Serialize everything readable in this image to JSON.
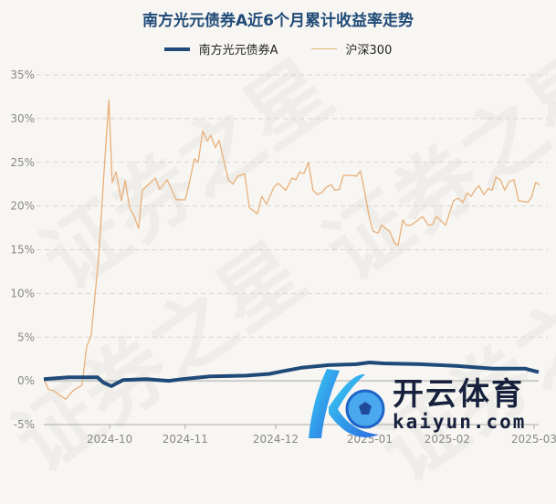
{
  "chart_data": {
    "type": "line",
    "title": "南方光元债券A近6个月累计收益率走势",
    "legend_position": "top",
    "grid": true,
    "y_unit": "%",
    "ylim": [
      -5,
      35
    ],
    "yticks": [
      "35%",
      "30%",
      "25%",
      "20%",
      "15%",
      "10%",
      "5%",
      "0%",
      "-5%"
    ],
    "ytick_values": [
      35,
      30,
      25,
      20,
      15,
      10,
      5,
      0,
      -5
    ],
    "xlim": [
      0,
      118
    ],
    "xticks": [
      {
        "label": "2024-10",
        "at": 15.7
      },
      {
        "label": "2024-11",
        "at": 33.7
      },
      {
        "label": "2024-12",
        "at": 55.3
      },
      {
        "label": "2025-01",
        "at": 77.7
      },
      {
        "label": "2025-02",
        "at": 96.2
      },
      {
        "label": "2025-03",
        "at": 116.9
      }
    ],
    "series": [
      {
        "name": "南方光元债券A",
        "color": "#1f4a78",
        "points": [
          [
            0,
            0.2
          ],
          [
            5.9,
            0.4
          ],
          [
            11.3,
            0.4
          ],
          [
            12.8,
            0.4
          ],
          [
            14.2,
            -0.2
          ],
          [
            16.1,
            -0.6
          ],
          [
            18.9,
            0.1
          ],
          [
            24.4,
            0.2
          ],
          [
            29.8,
            0
          ],
          [
            33.1,
            0.2
          ],
          [
            39.6,
            0.5
          ],
          [
            48.3,
            0.6
          ],
          [
            53.8,
            0.8
          ],
          [
            57,
            1.1
          ],
          [
            61.4,
            1.5
          ],
          [
            67.9,
            1.8
          ],
          [
            74.5,
            1.9
          ],
          [
            77.7,
            2.1
          ],
          [
            81,
            2.0
          ],
          [
            89.7,
            1.9
          ],
          [
            98.4,
            1.7
          ],
          [
            107.1,
            1.4
          ],
          [
            114.7,
            1.4
          ],
          [
            118,
            1.0
          ]
        ]
      },
      {
        "name": "沪深300",
        "color": "#e8b07a",
        "points": [
          [
            0,
            0.2
          ],
          [
            1.1,
            -1.0
          ],
          [
            2.2,
            -1.1
          ],
          [
            5.2,
            -2.1
          ],
          [
            7,
            -1.1
          ],
          [
            9.1,
            -0.5
          ],
          [
            10.2,
            3.9
          ],
          [
            11.3,
            5.2
          ],
          [
            13.1,
            14.3
          ],
          [
            14.2,
            22.7
          ],
          [
            15.5,
            32.1
          ],
          [
            16.3,
            22.7
          ],
          [
            17.2,
            23.9
          ],
          [
            18.5,
            20.6
          ],
          [
            19.4,
            22.9
          ],
          [
            20.5,
            19.7
          ],
          [
            21.6,
            18.8
          ],
          [
            22.6,
            17.4
          ],
          [
            23.5,
            21.8
          ],
          [
            24.8,
            22.4
          ],
          [
            26.6,
            23.2
          ],
          [
            27.6,
            21.9
          ],
          [
            29.4,
            23.0
          ],
          [
            31.6,
            20.7
          ],
          [
            33.7,
            20.7
          ],
          [
            34.6,
            22.4
          ],
          [
            35.9,
            25.4
          ],
          [
            36.8,
            25.0
          ],
          [
            37.9,
            28.6
          ],
          [
            39,
            27.4
          ],
          [
            39.8,
            28.1
          ],
          [
            40.9,
            26.7
          ],
          [
            41.8,
            27.5
          ],
          [
            44,
            23.0
          ],
          [
            45.1,
            22.5
          ],
          [
            46.2,
            23.4
          ],
          [
            47.9,
            23.7
          ],
          [
            49,
            19.8
          ],
          [
            50.9,
            19.1
          ],
          [
            52,
            21.1
          ],
          [
            53.1,
            20.2
          ],
          [
            54.9,
            22.2
          ],
          [
            55.9,
            22.6
          ],
          [
            57.7,
            21.8
          ],
          [
            59.2,
            23.2
          ],
          [
            60.1,
            23.0
          ],
          [
            61,
            23.9
          ],
          [
            62,
            23.7
          ],
          [
            63.1,
            25.0
          ],
          [
            64.2,
            21.8
          ],
          [
            65.3,
            21.3
          ],
          [
            66.4,
            21.6
          ],
          [
            67.5,
            22.2
          ],
          [
            68.6,
            22.4
          ],
          [
            69.4,
            21.8
          ],
          [
            70.5,
            21.9
          ],
          [
            71.4,
            23.5
          ],
          [
            72.7,
            23.5
          ],
          [
            73.8,
            23.5
          ],
          [
            74.5,
            23.4
          ],
          [
            75.5,
            24.0
          ],
          [
            76.4,
            21.9
          ],
          [
            77.7,
            18.5
          ],
          [
            78.6,
            17.1
          ],
          [
            79.7,
            16.9
          ],
          [
            80.5,
            17.8
          ],
          [
            82.5,
            17.1
          ],
          [
            83.6,
            15.8
          ],
          [
            84.5,
            15.5
          ],
          [
            85.6,
            18.4
          ],
          [
            86.4,
            17.8
          ],
          [
            87.5,
            17.8
          ],
          [
            89,
            18.3
          ],
          [
            90.3,
            18.8
          ],
          [
            91.7,
            17.8
          ],
          [
            92.7,
            17.9
          ],
          [
            93.6,
            18.8
          ],
          [
            95.8,
            17.8
          ],
          [
            97.7,
            20.6
          ],
          [
            98.8,
            20.9
          ],
          [
            99.9,
            20.4
          ],
          [
            101,
            21.5
          ],
          [
            101.9,
            21.1
          ],
          [
            103,
            22.0
          ],
          [
            103.8,
            22.3
          ],
          [
            104.9,
            21.3
          ],
          [
            106,
            22.0
          ],
          [
            106.9,
            21.8
          ],
          [
            107.8,
            23.3
          ],
          [
            108.9,
            23.0
          ],
          [
            109.9,
            21.8
          ],
          [
            111,
            22.8
          ],
          [
            112.1,
            23.0
          ],
          [
            113.2,
            20.6
          ],
          [
            114.7,
            20.5
          ],
          [
            115.4,
            20.4
          ],
          [
            116.3,
            21.0
          ],
          [
            117.3,
            22.7
          ],
          [
            118.2,
            22.4
          ]
        ]
      }
    ]
  },
  "watermark": {
    "text": "证券之星",
    "logo_cn": "开云体育",
    "logo_en": "kaiyun.com"
  }
}
